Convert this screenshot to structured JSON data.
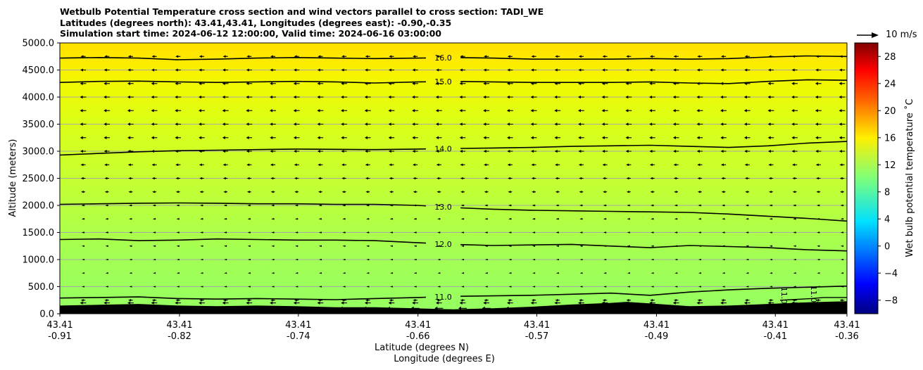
{
  "chart_data": {
    "type": "cross-section",
    "title_lines": [
      "Wetbulb Potential Temperature cross section and wind vectors parallel to cross section: TADI_WE",
      "Latitudes (degrees north): 43.41,43.41, Longitudes (degrees east): -0.90,-0.35",
      "Simulation start time: 2024-06-12 12:00:00, Valid time: 2024-06-16 03:00:00"
    ],
    "ylabel": "Altitude (meters)",
    "xlabel_lat": "Latitude (degrees N)",
    "xlabel_lon": "Longitude (degrees E)",
    "ylim": [
      0,
      5000
    ],
    "y_ticks": [
      "0.0",
      "500.0",
      "1000.0",
      "1500.0",
      "2000.0",
      "2500.0",
      "3000.0",
      "3500.0",
      "4000.0",
      "4500.0",
      "5000.0"
    ],
    "y_tick_values": [
      0,
      500,
      1000,
      1500,
      2000,
      2500,
      3000,
      3500,
      4000,
      4500,
      5000
    ],
    "x_ticks": [
      {
        "lat": "43.41",
        "lon": "-0.91",
        "frac": 0.0
      },
      {
        "lat": "43.41",
        "lon": "-0.82",
        "frac": 0.152
      },
      {
        "lat": "43.41",
        "lon": "-0.74",
        "frac": 0.303
      },
      {
        "lat": "43.41",
        "lon": "-0.66",
        "frac": 0.455
      },
      {
        "lat": "43.41",
        "lon": "-0.57",
        "frac": 0.606
      },
      {
        "lat": "43.41",
        "lon": "-0.49",
        "frac": 0.758
      },
      {
        "lat": "43.41",
        "lon": "-0.41",
        "frac": 0.909
      },
      {
        "lat": "43.41",
        "lon": "-0.36",
        "frac": 1.0
      }
    ],
    "colorbar": {
      "label": "Wet bulb potential temperature ˚C",
      "range": [
        -10,
        30
      ],
      "ticks": [
        "−8",
        "−4",
        "0",
        "4",
        "8",
        "12",
        "16",
        "20",
        "24",
        "28"
      ],
      "tick_values": [
        -8,
        -4,
        0,
        4,
        8,
        12,
        16,
        20,
        24,
        28
      ]
    },
    "quiver_key": "10 m/s",
    "contours": [
      {
        "label": "11.0",
        "level": 11,
        "x": [
          0,
          0.05,
          0.1,
          0.15,
          0.2,
          0.25,
          0.3,
          0.35,
          0.4,
          0.455,
          0.5,
          0.55,
          0.6,
          0.65,
          0.7,
          0.75,
          0.8,
          0.85,
          0.9,
          0.95,
          1.0
        ],
        "y": [
          290,
          300,
          310,
          280,
          270,
          280,
          270,
          260,
          280,
          300,
          320,
          330,
          340,
          360,
          380,
          340,
          400,
          440,
          470,
          490,
          510
        ]
      },
      {
        "label": "12.0",
        "level": 12,
        "x": [
          0,
          0.05,
          0.1,
          0.15,
          0.2,
          0.25,
          0.3,
          0.35,
          0.4,
          0.455,
          0.5,
          0.55,
          0.6,
          0.65,
          0.7,
          0.75,
          0.8,
          0.85,
          0.9,
          0.95,
          1.0
        ],
        "y": [
          1370,
          1380,
          1350,
          1360,
          1380,
          1370,
          1360,
          1360,
          1350,
          1310,
          1280,
          1260,
          1270,
          1280,
          1250,
          1220,
          1260,
          1240,
          1220,
          1180,
          1160
        ]
      },
      {
        "label": "13.0",
        "level": 13,
        "x": [
          0,
          0.05,
          0.1,
          0.15,
          0.2,
          0.25,
          0.3,
          0.35,
          0.4,
          0.455,
          0.5,
          0.55,
          0.6,
          0.65,
          0.7,
          0.75,
          0.8,
          0.85,
          0.9,
          0.95,
          1.0
        ],
        "y": [
          2020,
          2030,
          2040,
          2045,
          2040,
          2030,
          2030,
          2020,
          2020,
          2000,
          1960,
          1930,
          1910,
          1900,
          1890,
          1880,
          1870,
          1840,
          1800,
          1760,
          1710
        ]
      },
      {
        "label": "14.0",
        "level": 14,
        "x": [
          0,
          0.05,
          0.1,
          0.15,
          0.2,
          0.25,
          0.3,
          0.35,
          0.4,
          0.455,
          0.5,
          0.55,
          0.6,
          0.65,
          0.7,
          0.75,
          0.8,
          0.85,
          0.9,
          0.95,
          1.0
        ],
        "y": [
          2930,
          2960,
          2990,
          3010,
          3020,
          3030,
          3040,
          3035,
          3030,
          3040,
          3050,
          3060,
          3070,
          3090,
          3100,
          3110,
          3090,
          3070,
          3100,
          3150,
          3180
        ]
      },
      {
        "label": "15.0",
        "level": 15,
        "x": [
          0,
          0.05,
          0.1,
          0.15,
          0.2,
          0.25,
          0.3,
          0.35,
          0.4,
          0.455,
          0.5,
          0.55,
          0.6,
          0.65,
          0.7,
          0.75,
          0.8,
          0.85,
          0.9,
          0.95,
          1.0
        ],
        "y": [
          4270,
          4290,
          4295,
          4280,
          4270,
          4280,
          4290,
          4280,
          4260,
          4280,
          4290,
          4280,
          4270,
          4270,
          4270,
          4280,
          4260,
          4250,
          4290,
          4320,
          4310
        ]
      },
      {
        "label": "16.0",
        "level": 16,
        "x": [
          0,
          0.05,
          0.1,
          0.15,
          0.2,
          0.25,
          0.3,
          0.35,
          0.4,
          0.455,
          0.5,
          0.55,
          0.6,
          0.65,
          0.7,
          0.75,
          0.8,
          0.85,
          0.9,
          0.95,
          1.0
        ],
        "y": [
          4720,
          4730,
          4720,
          4690,
          4700,
          4720,
          4730,
          4720,
          4710,
          4720,
          4730,
          4720,
          4700,
          4700,
          4700,
          4710,
          4700,
          4710,
          4740,
          4760,
          4750
        ]
      }
    ],
    "small_contours": [
      {
        "label": "11.0",
        "level": 11,
        "x": [
          0.915,
          0.93,
          0.955,
          0.97,
          1.0
        ],
        "y": [
          250,
          260,
          280,
          300,
          300
        ]
      }
    ],
    "terrain": {
      "x": [
        0,
        0.05,
        0.1,
        0.15,
        0.2,
        0.25,
        0.3,
        0.35,
        0.4,
        0.45,
        0.5,
        0.55,
        0.6,
        0.65,
        0.7,
        0.72,
        0.75,
        0.8,
        0.85,
        0.9,
        0.95,
        1.0
      ],
      "y": [
        150,
        165,
        180,
        150,
        140,
        150,
        140,
        120,
        120,
        100,
        80,
        100,
        130,
        170,
        200,
        220,
        190,
        140,
        150,
        180,
        210,
        230
      ]
    },
    "wind_rows_heights": [
      100,
      200,
      250,
      500,
      750,
      1000,
      1250,
      1500,
      1750,
      2000,
      2250,
      2500,
      2750,
      3000,
      3250,
      3500,
      3750,
      4000,
      4250,
      4500,
      4750
    ],
    "wind_rows_u": [
      -4,
      -2.5,
      -1.5,
      -0.3,
      -0.3,
      -0.3,
      -0.4,
      -0.5,
      -0.6,
      -0.8,
      -1.2,
      -1.5,
      -1.8,
      -2.2,
      -2.4,
      -2.5,
      -2.6,
      -2.6,
      -2.5,
      -2.2,
      -1.8
    ]
  }
}
